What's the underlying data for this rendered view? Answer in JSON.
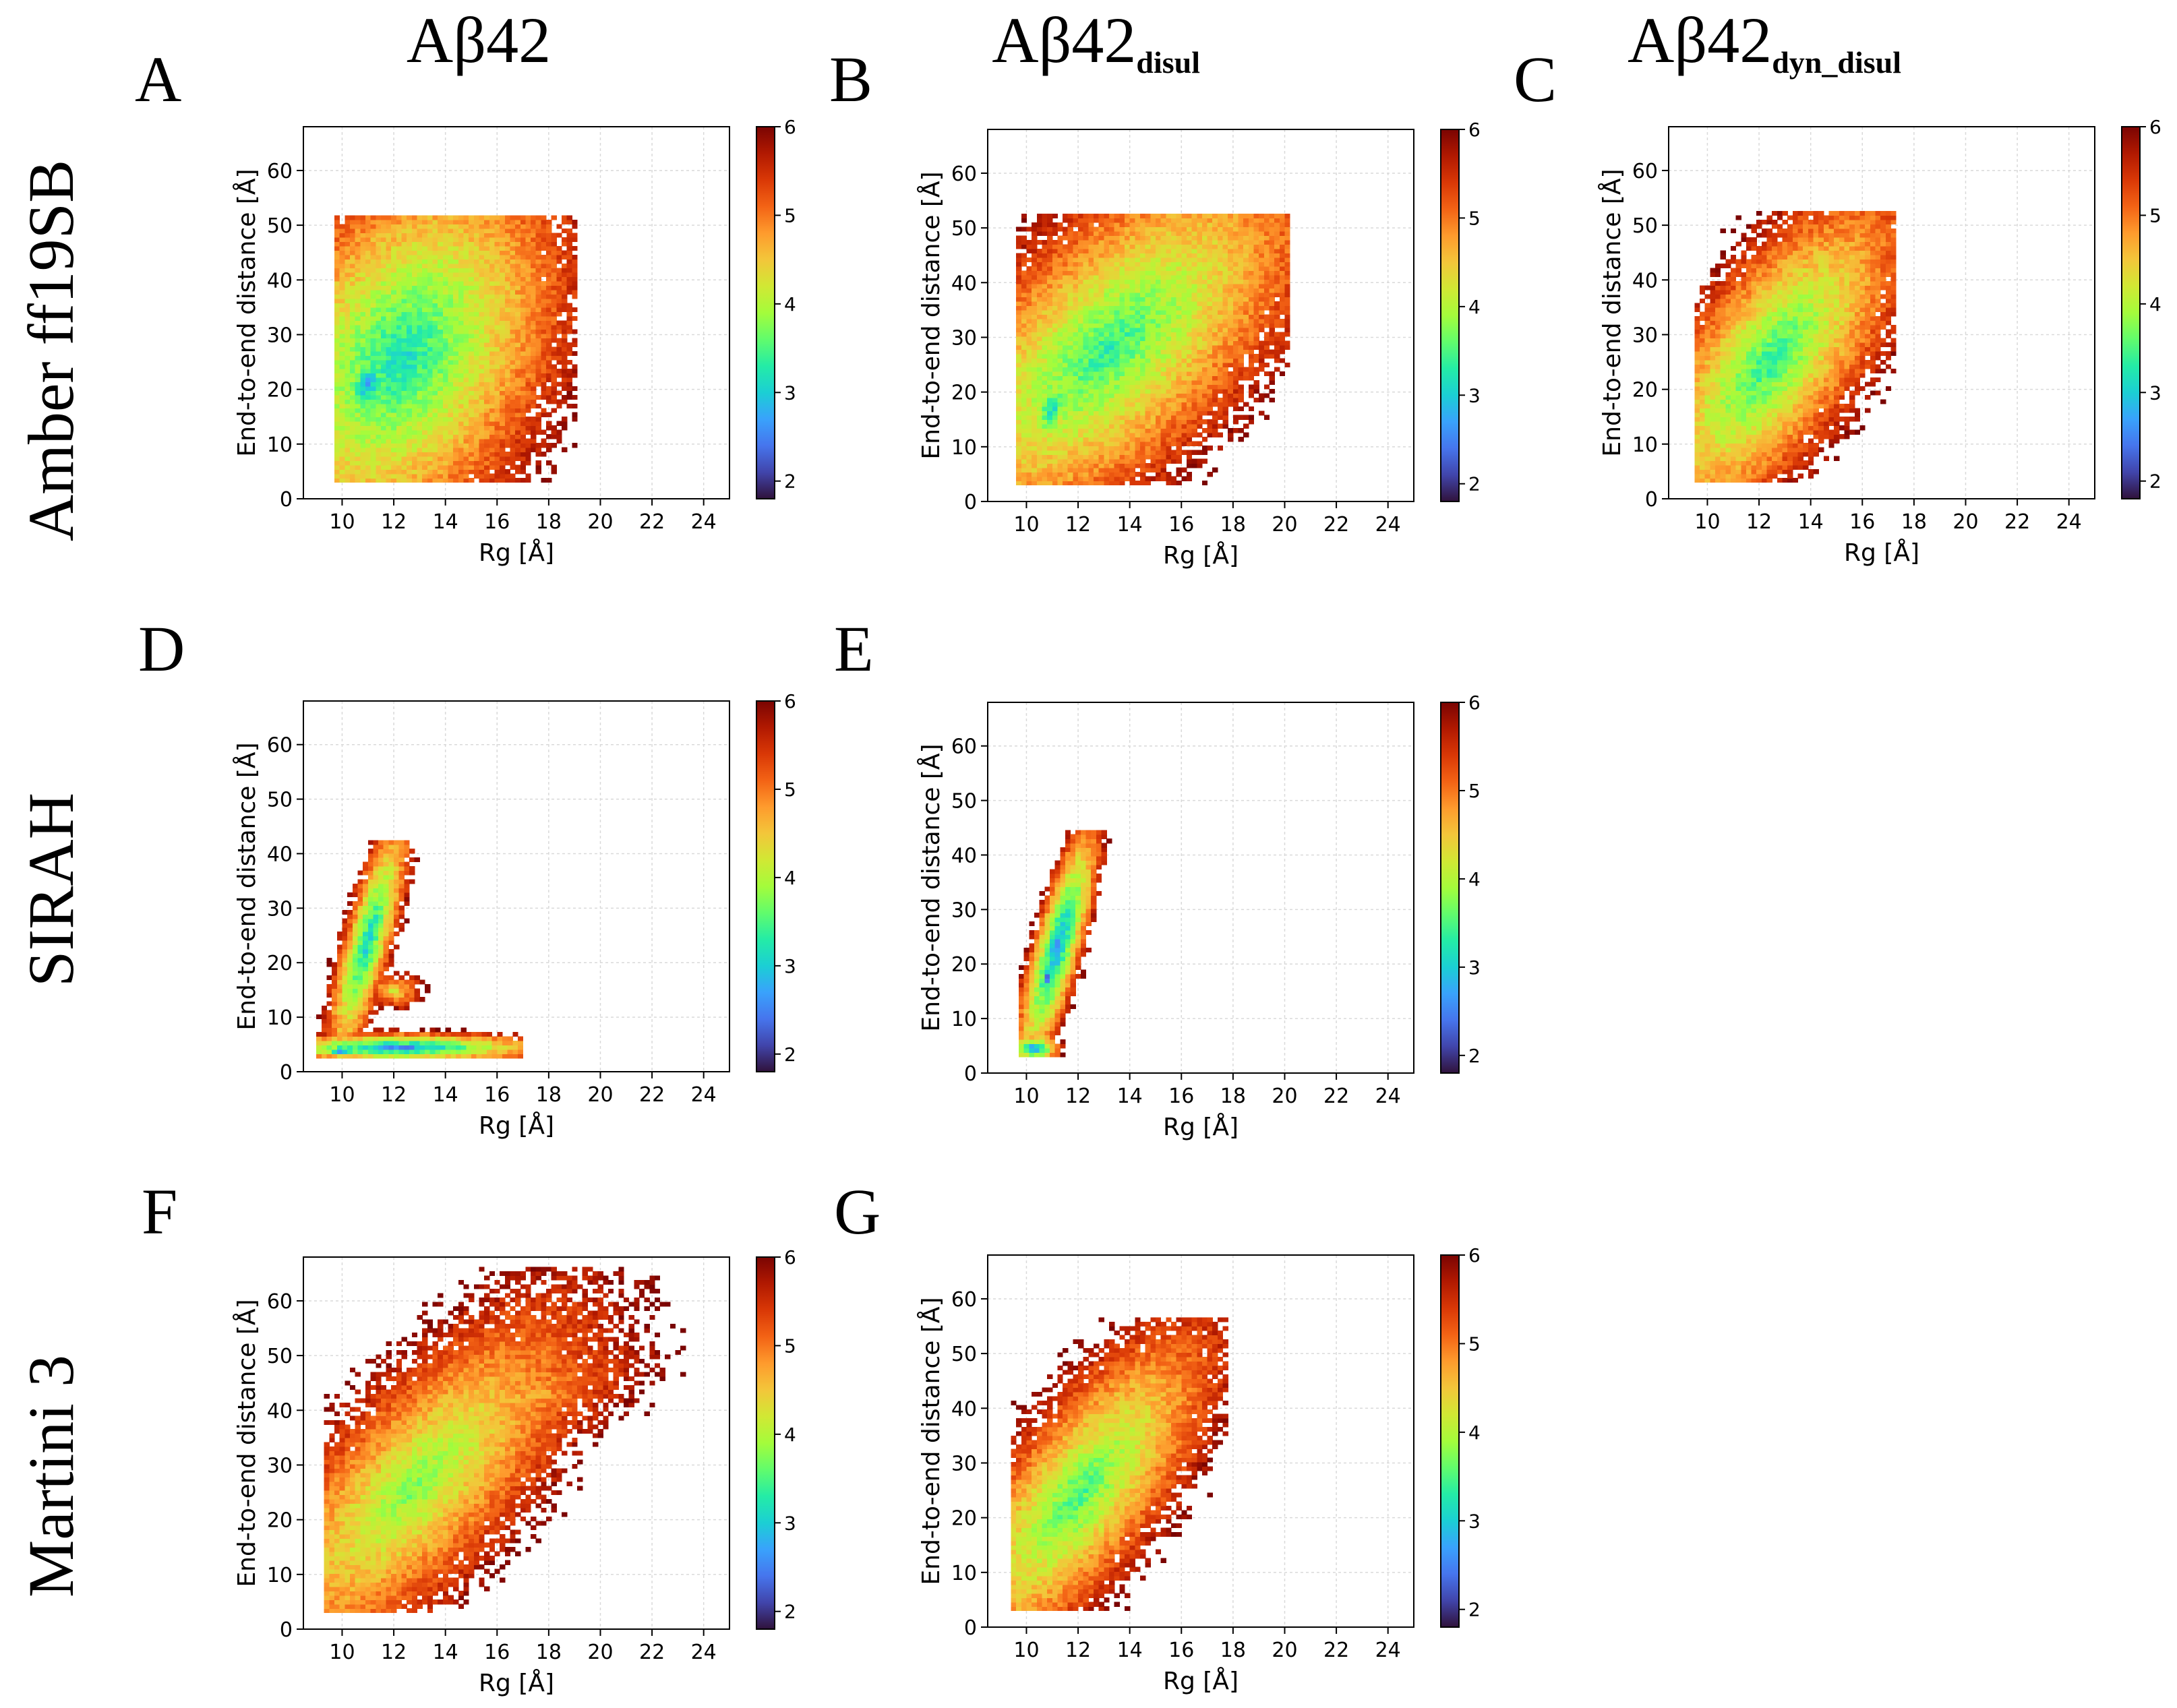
{
  "figure": {
    "column_titles": [
      {
        "base": "Aβ42",
        "sub": ""
      },
      {
        "base": "Aβ42",
        "sub": "disul"
      },
      {
        "base": "Aβ42",
        "sub": "dyn_disul"
      }
    ],
    "row_titles": [
      "Amber ff19SB",
      "SIRAH",
      "Martini 3"
    ]
  },
  "colors": {
    "colormap": [
      "#30123b",
      "#4145ab",
      "#4675ed",
      "#39a2fc",
      "#1bcfd4",
      "#24eca6",
      "#61fc6c",
      "#a4fc3b",
      "#d1e834",
      "#f3c63a",
      "#fe9b2d",
      "#f36315",
      "#d93806",
      "#b11901",
      "#7a0402"
    ],
    "grid": "#d9d9d9",
    "axis": "#000000"
  },
  "chart_data": [
    {
      "panel": "A",
      "type": "heatmap",
      "force_field": "Amber ff19SB",
      "system": "Aβ42",
      "xlabel": "Rg [Å]",
      "ylabel": "End-to-end distance [Å]",
      "xlim": [
        8.5,
        25
      ],
      "ylim": [
        0,
        68
      ],
      "xticks": [
        "10",
        "12",
        "14",
        "16",
        "18",
        "20",
        "22",
        "24"
      ],
      "yticks": [
        "0",
        "10",
        "20",
        "30",
        "40",
        "50",
        "60"
      ],
      "colorbar": {
        "range": [
          1.8,
          6
        ],
        "ticks": [
          "2",
          "3",
          "4",
          "5",
          "6"
        ]
      },
      "blobs": [
        {
          "cx": 12.3,
          "cy": 26,
          "sx": 1.9,
          "sy": 11,
          "rho": 0.35,
          "vmin": 3.1,
          "edge": 4.6
        },
        {
          "cx": 11.0,
          "cy": 21,
          "sx": 0.9,
          "sy": 6,
          "rho": 0.3,
          "vmin": 2.6,
          "edge": 2.0
        },
        {
          "cx": 15.5,
          "cy": 33,
          "sx": 1.8,
          "sy": 10,
          "rho": 0.3,
          "vmin": 4.3,
          "edge": 2.5
        }
      ],
      "clip": {
        "x": [
          9.7,
          19
        ],
        "y": [
          3,
          51
        ]
      }
    },
    {
      "panel": "B",
      "type": "heatmap",
      "force_field": "Amber ff19SB",
      "system": "Aβ42disul",
      "xlabel": "Rg [Å]",
      "ylabel": "End-to-end distance [Å]",
      "xlim": [
        8.5,
        25
      ],
      "ylim": [
        0,
        68
      ],
      "xticks": [
        "10",
        "12",
        "14",
        "16",
        "18",
        "20",
        "22",
        "24"
      ],
      "yticks": [
        "0",
        "10",
        "20",
        "30",
        "40",
        "50",
        "60"
      ],
      "colorbar": {
        "range": [
          1.8,
          6
        ],
        "ticks": [
          "2",
          "3",
          "4",
          "5",
          "6"
        ]
      },
      "blobs": [
        {
          "cx": 13.2,
          "cy": 28,
          "sx": 2.4,
          "sy": 11,
          "rho": 0.65,
          "vmin": 3.3,
          "edge": 4.6
        },
        {
          "cx": 11.0,
          "cy": 17,
          "sx": 0.8,
          "sy": 6,
          "rho": 0.4,
          "vmin": 3.0,
          "edge": 2.0
        },
        {
          "cx": 16.5,
          "cy": 38,
          "sx": 1.8,
          "sy": 8,
          "rho": 0.5,
          "vmin": 4.3,
          "edge": 2.5
        }
      ],
      "clip": {
        "x": [
          9.6,
          20
        ],
        "y": [
          3,
          52
        ]
      }
    },
    {
      "panel": "C",
      "type": "heatmap",
      "force_field": "Amber ff19SB",
      "system": "Aβ42dyn_disul",
      "xlabel": "Rg [Å]",
      "ylabel": "End-to-end distance [Å]",
      "xlim": [
        8.5,
        25
      ],
      "ylim": [
        0,
        68
      ],
      "xticks": [
        "10",
        "12",
        "14",
        "16",
        "18",
        "20",
        "22",
        "24"
      ],
      "yticks": [
        "0",
        "10",
        "20",
        "30",
        "40",
        "50",
        "60"
      ],
      "colorbar": {
        "range": [
          1.8,
          6
        ],
        "ticks": [
          "2",
          "3",
          "4",
          "5",
          "6"
        ]
      },
      "blobs": [
        {
          "cx": 12.4,
          "cy": 25,
          "sx": 1.7,
          "sy": 10,
          "rho": 0.7,
          "vmin": 3.3,
          "edge": 4.4
        }
      ],
      "clip": {
        "x": [
          9.5,
          17.2
        ],
        "y": [
          3,
          52
        ]
      }
    },
    {
      "panel": "D",
      "type": "heatmap",
      "force_field": "SIRAH",
      "system": "Aβ42",
      "xlabel": "Rg [Å]",
      "ylabel": "End-to-end distance [Å]",
      "xlim": [
        8.5,
        25
      ],
      "ylim": [
        0,
        68
      ],
      "xticks": [
        "10",
        "12",
        "14",
        "16",
        "18",
        "20",
        "22",
        "24"
      ],
      "yticks": [
        "0",
        "10",
        "20",
        "30",
        "40",
        "50",
        "60"
      ],
      "colorbar": {
        "range": [
          1.8,
          6
        ],
        "ticks": [
          "2",
          "3",
          "4",
          "5",
          "6"
        ]
      },
      "blobs": [
        {
          "cx": 11.0,
          "cy": 24,
          "sx": 0.55,
          "sy": 8,
          "rho": 0.8,
          "vmin": 2.9,
          "edge": 4.0
        },
        {
          "cx": 12.3,
          "cy": 4.5,
          "sx": 2.2,
          "sy": 1.0,
          "rho": 0.0,
          "vmin": 2.5,
          "edge": 3.5
        },
        {
          "cx": 10.0,
          "cy": 4.0,
          "sx": 0.5,
          "sy": 0.7,
          "rho": 0.0,
          "vmin": 1.8,
          "edge": 2.0
        },
        {
          "cx": 12.0,
          "cy": 15,
          "sx": 0.8,
          "sy": 2.5,
          "rho": 0.0,
          "vmin": 4.2,
          "edge": 1.8
        }
      ],
      "clip": {
        "x": [
          9.0,
          16.8
        ],
        "y": [
          2.5,
          42
        ]
      }
    },
    {
      "panel": "E",
      "type": "heatmap",
      "force_field": "SIRAH",
      "system": "Aβ42disul",
      "xlabel": "Rg [Å]",
      "ylabel": "End-to-end distance [Å]",
      "xlim": [
        8.5,
        25
      ],
      "ylim": [
        0,
        68
      ],
      "xticks": [
        "10",
        "12",
        "14",
        "16",
        "18",
        "20",
        "22",
        "24"
      ],
      "yticks": [
        "0",
        "10",
        "20",
        "30",
        "40",
        "50",
        "60"
      ],
      "colorbar": {
        "range": [
          1.8,
          6
        ],
        "ticks": [
          "2",
          "3",
          "4",
          "5",
          "6"
        ]
      },
      "blobs": [
        {
          "cx": 11.2,
          "cy": 23,
          "sx": 0.55,
          "sy": 8,
          "rho": 0.8,
          "vmin": 2.6,
          "edge": 4.0
        },
        {
          "cx": 10.8,
          "cy": 17.5,
          "sx": 0.25,
          "sy": 1.5,
          "rho": 0.0,
          "vmin": 1.9,
          "edge": 1.8
        },
        {
          "cx": 10.3,
          "cy": 4.5,
          "sx": 0.5,
          "sy": 1.2,
          "rho": 0.0,
          "vmin": 2.3,
          "edge": 2.6
        }
      ],
      "clip": {
        "x": [
          9.7,
          14.6
        ],
        "y": [
          3,
          44
        ]
      }
    },
    {
      "panel": "F",
      "type": "heatmap",
      "force_field": "Martini 3",
      "system": "Aβ42",
      "xlabel": "Rg [Å]",
      "ylabel": "End-to-end distance [Å]",
      "xlim": [
        8.5,
        25
      ],
      "ylim": [
        0,
        68
      ],
      "xticks": [
        "10",
        "12",
        "14",
        "16",
        "18",
        "20",
        "22",
        "24"
      ],
      "yticks": [
        "0",
        "10",
        "20",
        "30",
        "40",
        "50",
        "60"
      ],
      "colorbar": {
        "range": [
          1.8,
          6
        ],
        "ticks": [
          "2",
          "3",
          "4",
          "5",
          "6"
        ]
      },
      "blobs": [
        {
          "cx": 12.8,
          "cy": 26,
          "sx": 2.2,
          "sy": 11,
          "rho": 0.75,
          "vmin": 3.7,
          "edge": 4.4
        },
        {
          "cx": 17.5,
          "cy": 43,
          "sx": 2.3,
          "sy": 7,
          "rho": 0.5,
          "vmin": 4.7,
          "edge": 2.5
        }
      ],
      "clip": {
        "x": [
          9.3,
          24.3
        ],
        "y": [
          3,
          66
        ]
      }
    },
    {
      "panel": "G",
      "type": "heatmap",
      "force_field": "Martini 3",
      "system": "Aβ42disul",
      "xlabel": "Rg [Å]",
      "ylabel": "End-to-end distance [Å]",
      "xlim": [
        8.5,
        25
      ],
      "ylim": [
        0,
        68
      ],
      "xticks": [
        "10",
        "12",
        "14",
        "16",
        "18",
        "20",
        "22",
        "24"
      ],
      "yticks": [
        "0",
        "10",
        "20",
        "30",
        "40",
        "50",
        "60"
      ],
      "colorbar": {
        "range": [
          1.8,
          6
        ],
        "ticks": [
          "2",
          "3",
          "4",
          "5",
          "6"
        ]
      },
      "blobs": [
        {
          "cx": 12.0,
          "cy": 24,
          "sx": 1.7,
          "sy": 10,
          "rho": 0.75,
          "vmin": 3.4,
          "edge": 4.4
        },
        {
          "cx": 14.8,
          "cy": 40,
          "sx": 1.3,
          "sy": 6,
          "rho": 0.5,
          "vmin": 4.6,
          "edge": 2.3
        }
      ],
      "clip": {
        "x": [
          9.4,
          17.6
        ],
        "y": [
          3,
          56
        ]
      }
    }
  ]
}
